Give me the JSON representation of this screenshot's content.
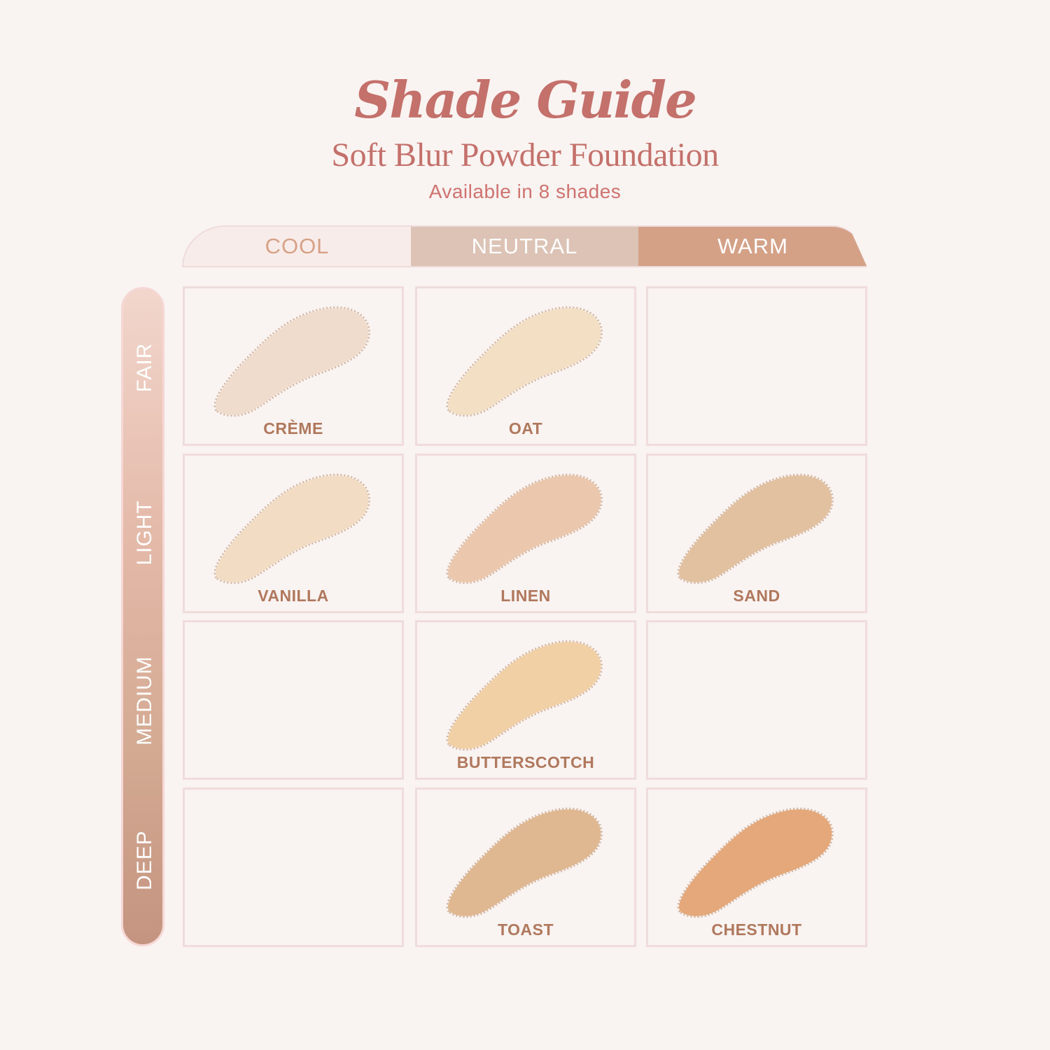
{
  "header": {
    "title": "Shade Guide",
    "subtitle": "Soft Blur Powder Foundation",
    "availability": "Available in 8 shades"
  },
  "undertones": [
    "COOL",
    "NEUTRAL",
    "WARM"
  ],
  "depths": [
    "FAIR",
    "LIGHT",
    "MEDIUM",
    "DEEP"
  ],
  "colors": {
    "title": "#c4706b",
    "cool_tab": "#f8ecea",
    "neutral_tab": "#dcc3b5",
    "warm_tab": "#d4a187",
    "label": "#b0785d"
  },
  "grid": [
    [
      {
        "name": "CRÈME",
        "color": "#f0dccd"
      },
      {
        "name": "OAT",
        "color": "#f2dfc4"
      },
      null
    ],
    [
      {
        "name": "VANILLA",
        "color": "#f2dcc3"
      },
      {
        "name": "LINEN",
        "color": "#ebc8ad"
      },
      {
        "name": "SAND",
        "color": "#e2c1a0"
      }
    ],
    [
      null,
      {
        "name": "BUTTERSCOTCH",
        "color": "#f1d0a6"
      },
      null
    ],
    [
      null,
      {
        "name": "TOAST",
        "color": "#dfb891"
      },
      {
        "name": "CHESTNUT",
        "color": "#e4a87a"
      }
    ]
  ]
}
